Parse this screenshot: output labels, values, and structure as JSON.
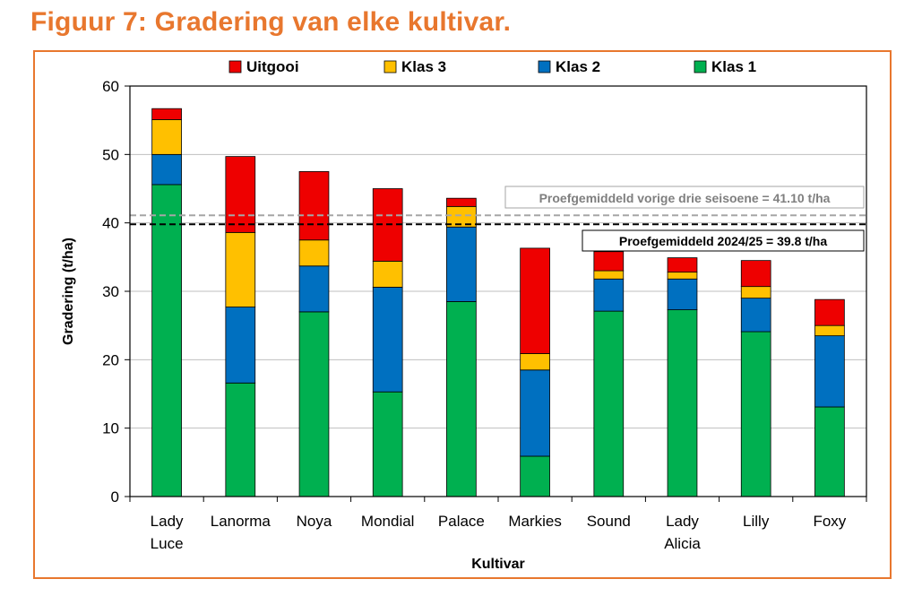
{
  "figure": {
    "title": "Figuur 7: Gradering van elke kultivar."
  },
  "colors": {
    "frame": "#e8772e",
    "Uitgooi": "#ee0000",
    "Klas 3": "#ffc000",
    "Klas 2": "#0070c0",
    "Klas 1": "#00b050",
    "ref_prev": "#a6a6a6",
    "ref_current": "#000000"
  },
  "chart_data": {
    "type": "bar",
    "stacked": true,
    "title": "",
    "xlabel": "Kultivar",
    "ylabel": "Gradering (t/ha)",
    "ylim": [
      0,
      60
    ],
    "yticks": [
      0,
      10,
      20,
      30,
      40,
      50,
      60
    ],
    "grid": true,
    "legend_position": "top",
    "categories": [
      [
        "Lady",
        "Luce"
      ],
      [
        "Lanorma"
      ],
      [
        "Noya"
      ],
      [
        "Mondial"
      ],
      [
        "Palace"
      ],
      [
        "Markies"
      ],
      [
        "Sound"
      ],
      [
        "Lady",
        "Alicia"
      ],
      [
        "Lilly"
      ],
      [
        "Foxy"
      ]
    ],
    "legend_order": [
      "Uitgooi",
      "Klas 3",
      "Klas 2",
      "Klas 1"
    ],
    "series": [
      {
        "name": "Klas 1",
        "values": [
          45.6,
          16.6,
          27.0,
          15.3,
          28.5,
          5.9,
          27.1,
          27.3,
          24.1,
          13.1
        ]
      },
      {
        "name": "Klas 2",
        "values": [
          4.4,
          11.1,
          6.7,
          15.3,
          10.9,
          12.6,
          4.7,
          4.5,
          4.9,
          10.4
        ]
      },
      {
        "name": "Klas 3",
        "values": [
          5.1,
          10.9,
          3.8,
          3.8,
          3.0,
          2.4,
          1.2,
          1.0,
          1.7,
          1.5
        ]
      },
      {
        "name": "Uitgooi",
        "values": [
          1.6,
          11.1,
          10.0,
          10.6,
          1.2,
          15.4,
          2.8,
          2.1,
          3.8,
          3.8
        ]
      }
    ],
    "reference_lines": [
      {
        "name": "prev",
        "value": 41.1,
        "style": "dashed",
        "label": "Proefgemiddeld vorige drie seisoene = 41.10 t/ha"
      },
      {
        "name": "current",
        "value": 39.8,
        "style": "dashed",
        "label": "Proefgemiddeld 2024/25 = 39.8  t/ha"
      }
    ]
  }
}
